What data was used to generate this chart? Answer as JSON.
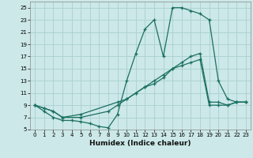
{
  "xlabel": "Humidex (Indice chaleur)",
  "bg_color": "#cce8e8",
  "grid_color": "#aacfcf",
  "line_color": "#1a7060",
  "xlim": [
    -0.5,
    23.5
  ],
  "ylim": [
    5,
    26
  ],
  "xticks": [
    0,
    1,
    2,
    3,
    4,
    5,
    6,
    7,
    8,
    9,
    10,
    11,
    12,
    13,
    14,
    15,
    16,
    17,
    18,
    19,
    20,
    21,
    22,
    23
  ],
  "yticks": [
    5,
    7,
    9,
    11,
    13,
    15,
    17,
    19,
    21,
    23,
    25
  ],
  "line1_x": [
    0,
    1,
    2,
    3,
    4,
    5,
    6,
    7,
    8,
    9,
    10,
    11,
    12,
    13,
    14,
    15,
    16,
    17,
    18,
    19,
    20,
    21,
    22,
    23
  ],
  "line1_y": [
    9,
    8,
    7,
    6.5,
    6.5,
    6.3,
    6.0,
    5.5,
    5.3,
    7.5,
    13,
    17.5,
    21.5,
    23,
    17,
    25,
    25,
    24.5,
    24,
    23,
    13,
    10,
    9.5,
    9.5
  ],
  "line2_x": [
    0,
    1,
    2,
    3,
    5,
    8,
    9,
    10,
    11,
    12,
    13,
    14,
    15,
    16,
    17,
    18,
    19,
    20,
    21,
    22,
    23
  ],
  "line2_y": [
    9,
    8.5,
    8,
    7,
    7,
    8,
    9,
    10,
    11,
    12,
    13,
    14,
    15,
    15.5,
    16,
    16.5,
    9,
    9,
    9,
    9.5,
    9.5
  ],
  "line3_x": [
    0,
    1,
    2,
    3,
    5,
    9,
    10,
    11,
    12,
    13,
    14,
    15,
    16,
    17,
    18,
    19,
    20,
    21,
    22,
    23
  ],
  "line3_y": [
    9,
    8.5,
    8,
    7,
    7.5,
    9.5,
    10,
    11,
    12,
    12.5,
    13.5,
    15,
    16,
    17,
    17.5,
    9.5,
    9.5,
    9,
    9.5,
    9.5
  ]
}
